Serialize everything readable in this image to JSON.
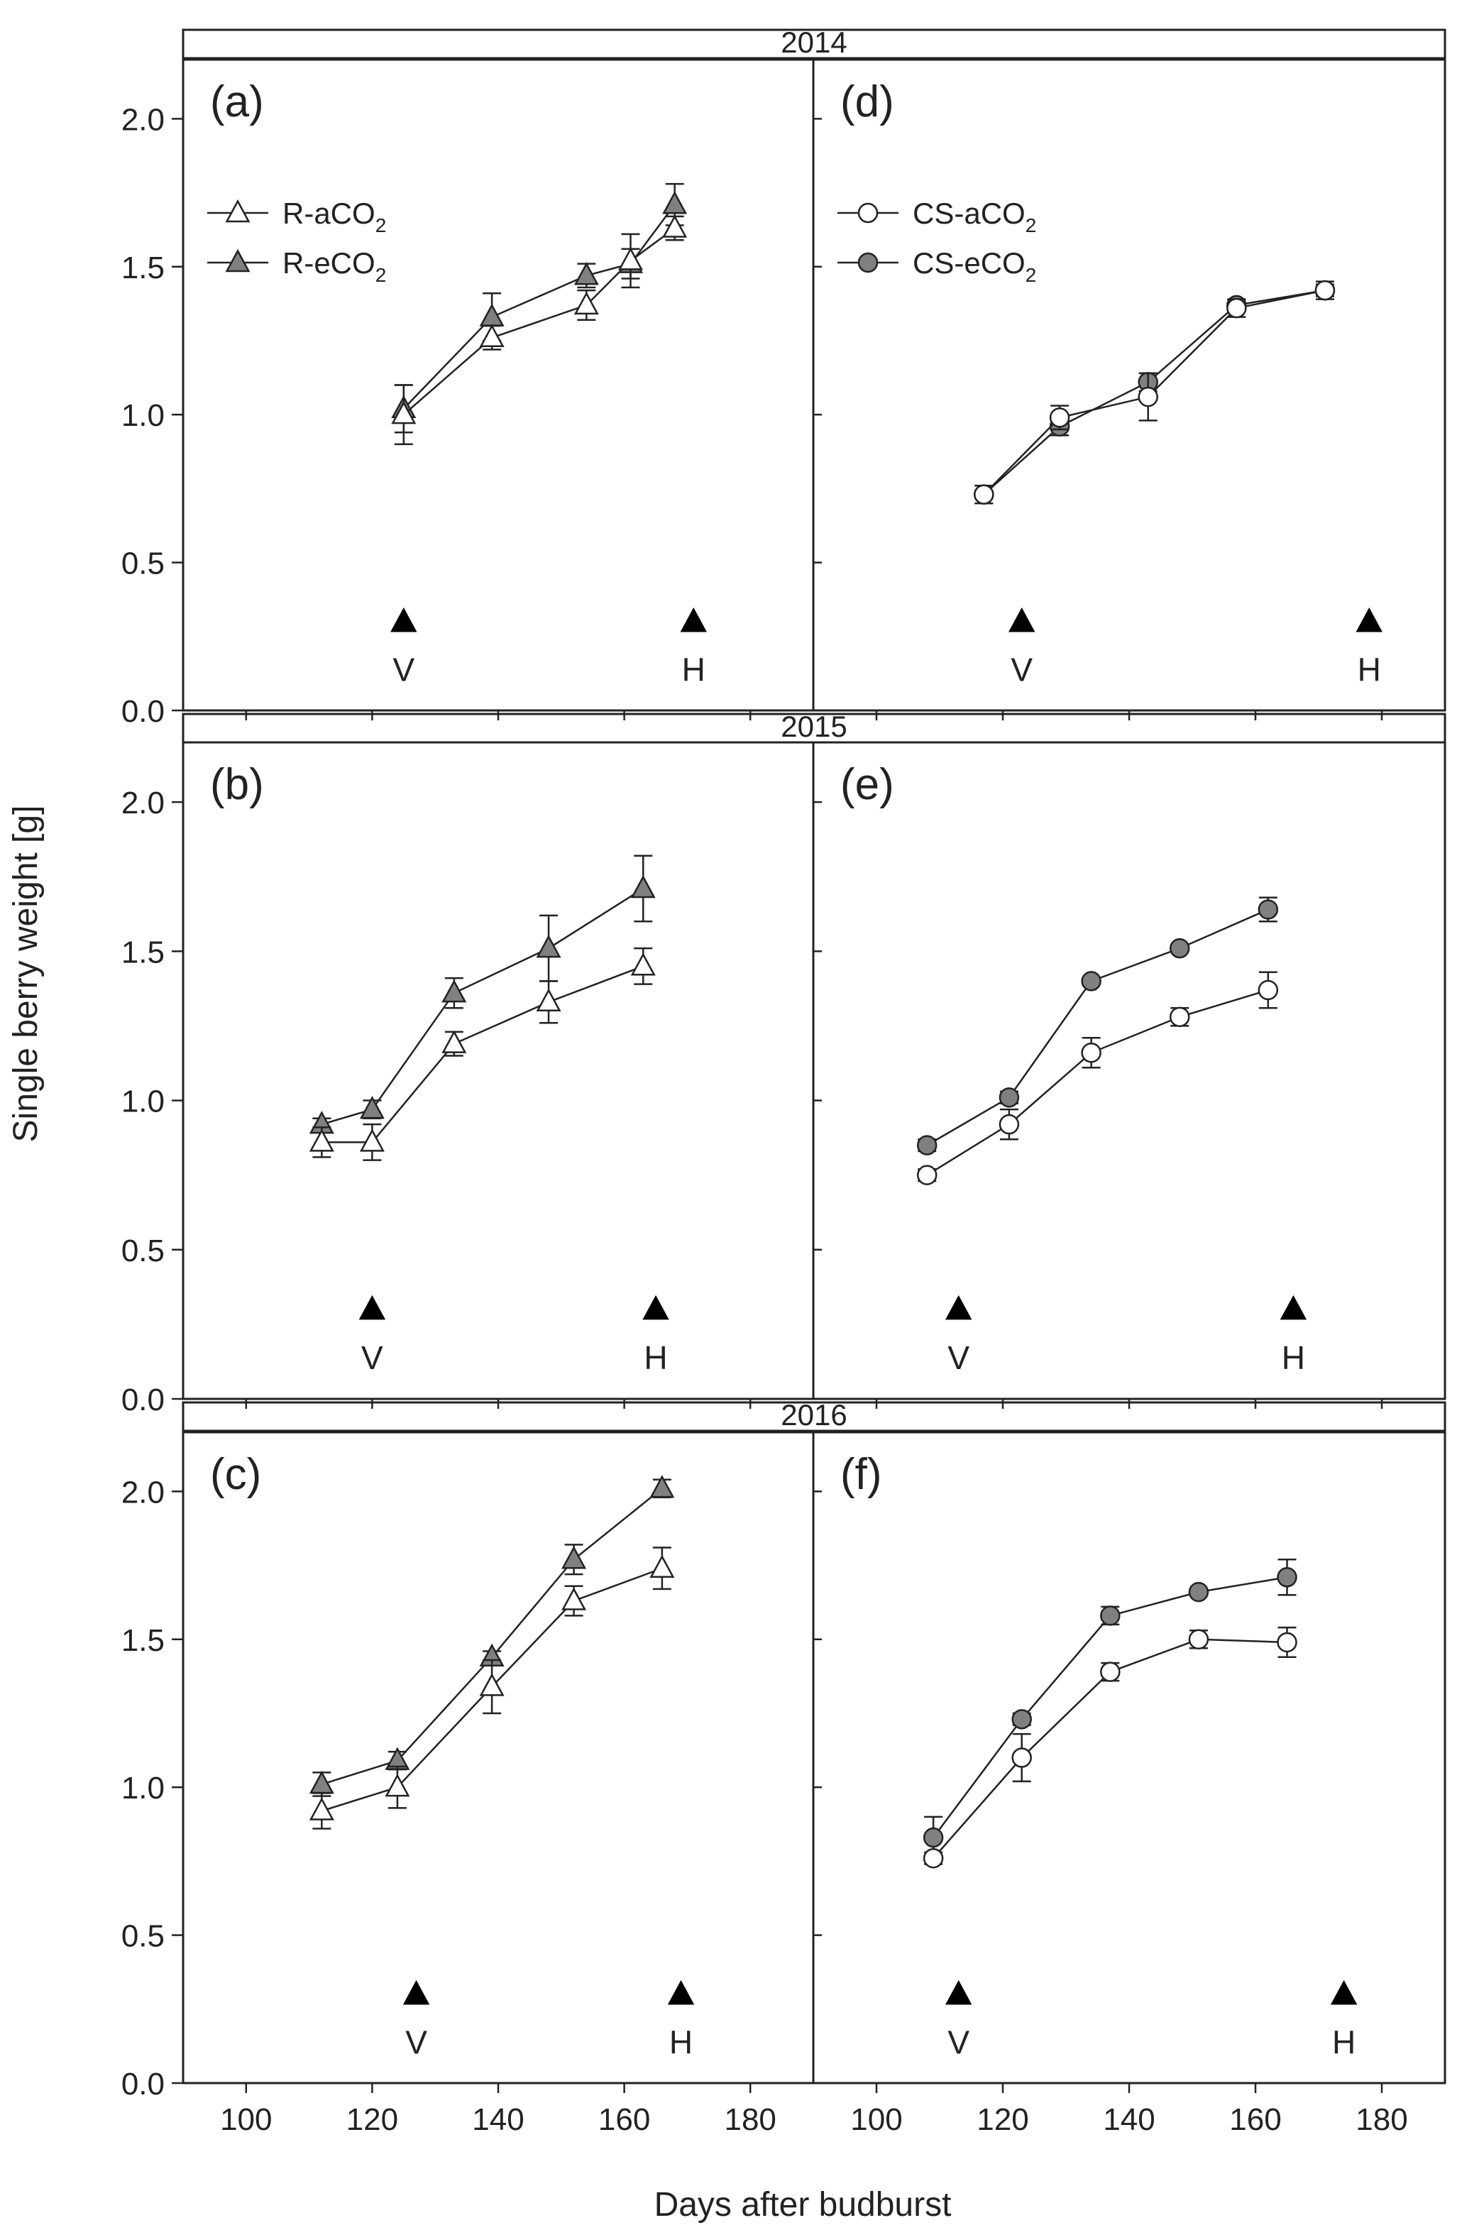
{
  "chart_data": {
    "type": "line",
    "ylabel": "Single berry weight [g]",
    "xlabel": "Days after budburst",
    "xlim": [
      90,
      190
    ],
    "ylim": [
      0,
      2.2
    ],
    "x_ticks": [
      100,
      120,
      140,
      160,
      180
    ],
    "y_ticks": [
      0.0,
      0.5,
      1.0,
      1.5,
      2.0
    ],
    "y_tick_labels": [
      "0.0",
      "0.5",
      "1.0",
      "1.5",
      "2.0"
    ],
    "years": [
      "2014",
      "2015",
      "2016"
    ],
    "legends": {
      "left": [
        {
          "label": "R-aCO",
          "sub": "2",
          "marker": "triangle",
          "fill": "#ffffff"
        },
        {
          "label": "R-eCO",
          "sub": "2",
          "marker": "triangle",
          "fill": "#808080"
        }
      ],
      "right": [
        {
          "label": "CS-aCO",
          "sub": "2",
          "marker": "circle",
          "fill": "#ffffff"
        },
        {
          "label": "CS-eCO",
          "sub": "2",
          "marker": "circle",
          "fill": "#808080"
        }
      ]
    },
    "panels": [
      {
        "label": "(a)",
        "row": 0,
        "col": 0,
        "marker": "triangle",
        "series": [
          {
            "name": "R-aCO2",
            "fill": "#ffffff",
            "x": [
              125,
              139,
              154,
              161,
              168
            ],
            "y": [
              1.0,
              1.26,
              1.37,
              1.52,
              1.63
            ],
            "err": [
              0.1,
              0.04,
              0.05,
              0.09,
              0.04
            ]
          },
          {
            "name": "R-eCO2",
            "fill": "#808080",
            "x": [
              125,
              139,
              154,
              161,
              168
            ],
            "y": [
              1.02,
              1.33,
              1.47,
              1.51,
              1.71
            ],
            "err": [
              0.08,
              0.08,
              0.04,
              0.05,
              0.07
            ]
          }
        ],
        "markers": [
          {
            "label": "V",
            "x": 125
          },
          {
            "label": "H",
            "x": 171
          }
        ]
      },
      {
        "label": "(b)",
        "row": 1,
        "col": 0,
        "marker": "triangle",
        "series": [
          {
            "name": "R-aCO2",
            "fill": "#ffffff",
            "x": [
              112,
              120,
              133,
              148,
              163
            ],
            "y": [
              0.86,
              0.86,
              1.19,
              1.33,
              1.45
            ],
            "err": [
              0.05,
              0.06,
              0.04,
              0.07,
              0.06
            ]
          },
          {
            "name": "R-eCO2",
            "fill": "#808080",
            "x": [
              112,
              120,
              133,
              148,
              163
            ],
            "y": [
              0.92,
              0.97,
              1.36,
              1.51,
              1.71
            ],
            "err": [
              0.02,
              0.03,
              0.05,
              0.11,
              0.11
            ]
          }
        ],
        "markers": [
          {
            "label": "V",
            "x": 120
          },
          {
            "label": "H",
            "x": 165
          }
        ]
      },
      {
        "label": "(c)",
        "row": 2,
        "col": 0,
        "marker": "triangle",
        "series": [
          {
            "name": "R-aCO2",
            "fill": "#ffffff",
            "x": [
              112,
              124,
              139,
              152,
              166
            ],
            "y": [
              0.92,
              1.0,
              1.34,
              1.63,
              1.74
            ],
            "err": [
              0.06,
              0.07,
              0.09,
              0.05,
              0.07
            ]
          },
          {
            "name": "R-eCO2",
            "fill": "#808080",
            "x": [
              112,
              124,
              139,
              152,
              166
            ],
            "y": [
              1.01,
              1.09,
              1.44,
              1.77,
              2.01
            ],
            "err": [
              0.04,
              0.03,
              0.02,
              0.05,
              0.03
            ]
          }
        ],
        "markers": [
          {
            "label": "V",
            "x": 127
          },
          {
            "label": "H",
            "x": 169
          }
        ]
      },
      {
        "label": "(d)",
        "row": 0,
        "col": 1,
        "marker": "circle",
        "series": [
          {
            "name": "CS-aCO2",
            "fill": "#ffffff",
            "x": [
              117,
              129,
              143,
              157,
              171
            ],
            "y": [
              0.73,
              0.99,
              1.06,
              1.36,
              1.42
            ],
            "err": [
              0.03,
              0.04,
              0.08,
              0.03,
              0.03
            ]
          },
          {
            "name": "CS-eCO2",
            "fill": "#808080",
            "x": [
              117,
              129,
              143,
              157,
              171
            ],
            "y": [
              0.73,
              0.96,
              1.11,
              1.37,
              1.42
            ],
            "err": [
              0.03,
              0.03,
              0.03,
              0.02,
              0.02
            ]
          }
        ],
        "markers": [
          {
            "label": "V",
            "x": 123
          },
          {
            "label": "H",
            "x": 178
          }
        ]
      },
      {
        "label": "(e)",
        "row": 1,
        "col": 1,
        "marker": "circle",
        "series": [
          {
            "name": "CS-aCO2",
            "fill": "#ffffff",
            "x": [
              108,
              121,
              134,
              148,
              162
            ],
            "y": [
              0.75,
              0.92,
              1.16,
              1.28,
              1.37
            ],
            "err": [
              0.02,
              0.05,
              0.05,
              0.03,
              0.06
            ]
          },
          {
            "name": "CS-eCO2",
            "fill": "#808080",
            "x": [
              108,
              121,
              134,
              148,
              162
            ],
            "y": [
              0.85,
              1.01,
              1.4,
              1.51,
              1.64
            ],
            "err": [
              0.02,
              0.02,
              0.01,
              0.01,
              0.04
            ]
          }
        ],
        "markers": [
          {
            "label": "V",
            "x": 113
          },
          {
            "label": "H",
            "x": 166
          }
        ]
      },
      {
        "label": "(f)",
        "row": 2,
        "col": 1,
        "marker": "circle",
        "series": [
          {
            "name": "CS-aCO2",
            "fill": "#ffffff",
            "x": [
              109,
              123,
              137,
              151,
              165
            ],
            "y": [
              0.76,
              1.1,
              1.39,
              1.5,
              1.49
            ],
            "err": [
              0.02,
              0.08,
              0.03,
              0.03,
              0.05
            ]
          },
          {
            "name": "CS-eCO2",
            "fill": "#808080",
            "x": [
              109,
              123,
              137,
              151,
              165
            ],
            "y": [
              0.83,
              1.23,
              1.58,
              1.66,
              1.71
            ],
            "err": [
              0.07,
              0.02,
              0.03,
              0.01,
              0.06
            ]
          }
        ],
        "markers": [
          {
            "label": "V",
            "x": 113
          },
          {
            "label": "H",
            "x": 174
          }
        ]
      }
    ]
  }
}
